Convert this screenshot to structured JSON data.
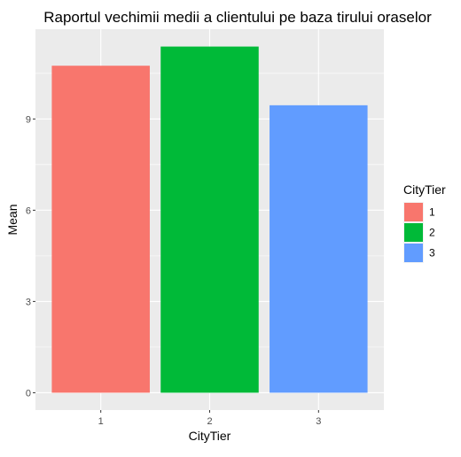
{
  "chart_data": {
    "type": "bar",
    "title": "Raportul vechimii medii a clientului pe baza tirului oraselor",
    "xlabel": "CityTier",
    "ylabel": "Mean",
    "categories": [
      "1",
      "2",
      "3"
    ],
    "values": [
      10.75,
      11.38,
      9.45
    ],
    "colors": [
      "#F8766D",
      "#00BA38",
      "#619CFF"
    ],
    "y_ticks": [
      0,
      3,
      6,
      9
    ],
    "ylim": [
      -0.57,
      11.95
    ],
    "grid": true,
    "panel_background": "#EBEBEB",
    "legend": {
      "title": "CityTier",
      "position": "right",
      "entries": [
        "1",
        "2",
        "3"
      ]
    }
  }
}
